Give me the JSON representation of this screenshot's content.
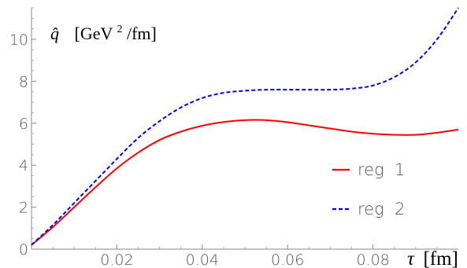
{
  "chart_data": {
    "type": "line",
    "ylabel": {
      "symbol": "q̂",
      "unit_prefix": "[GeV",
      "unit_sup": "2",
      "unit_suffix": "/fm]"
    },
    "xlabel": {
      "symbol": "τ",
      "unit": "[fm]"
    },
    "xlim": [
      0.0,
      0.1
    ],
    "ylim": [
      0,
      11.5
    ],
    "x_ticks": [
      0.02,
      0.04,
      0.06,
      0.08
    ],
    "x_tick_labels": [
      "0.02",
      "0.04",
      "0.06",
      "0.08"
    ],
    "y_ticks": [
      0,
      2,
      4,
      6,
      8,
      10
    ],
    "y_tick_labels": [
      "0",
      "2",
      "4",
      "6",
      "8",
      "10"
    ],
    "legend_position": "bottom-right",
    "grid": false,
    "series": [
      {
        "name": "reg  1",
        "color": "#ff0000",
        "dash": "solid",
        "x": [
          0.0,
          0.005,
          0.01,
          0.015,
          0.02,
          0.025,
          0.03,
          0.035,
          0.04,
          0.045,
          0.05,
          0.055,
          0.06,
          0.065,
          0.07,
          0.075,
          0.08,
          0.085,
          0.09,
          0.095,
          0.1
        ],
        "y": [
          0.2,
          1.05,
          2.0,
          2.95,
          3.85,
          4.6,
          5.2,
          5.6,
          5.88,
          6.06,
          6.15,
          6.15,
          6.05,
          5.9,
          5.75,
          5.6,
          5.5,
          5.45,
          5.45,
          5.55,
          5.7
        ]
      },
      {
        "name": "reg  2",
        "color": "#0000ff",
        "dash": "dashed",
        "x": [
          0.0,
          0.005,
          0.01,
          0.015,
          0.02,
          0.025,
          0.03,
          0.035,
          0.04,
          0.045,
          0.05,
          0.055,
          0.06,
          0.065,
          0.07,
          0.075,
          0.08,
          0.085,
          0.09,
          0.095,
          0.1
        ],
        "y": [
          0.2,
          1.15,
          2.2,
          3.25,
          4.3,
          5.3,
          6.1,
          6.75,
          7.2,
          7.45,
          7.55,
          7.6,
          7.6,
          7.6,
          7.6,
          7.65,
          7.8,
          8.2,
          8.9,
          10.0,
          11.5
        ]
      }
    ]
  }
}
